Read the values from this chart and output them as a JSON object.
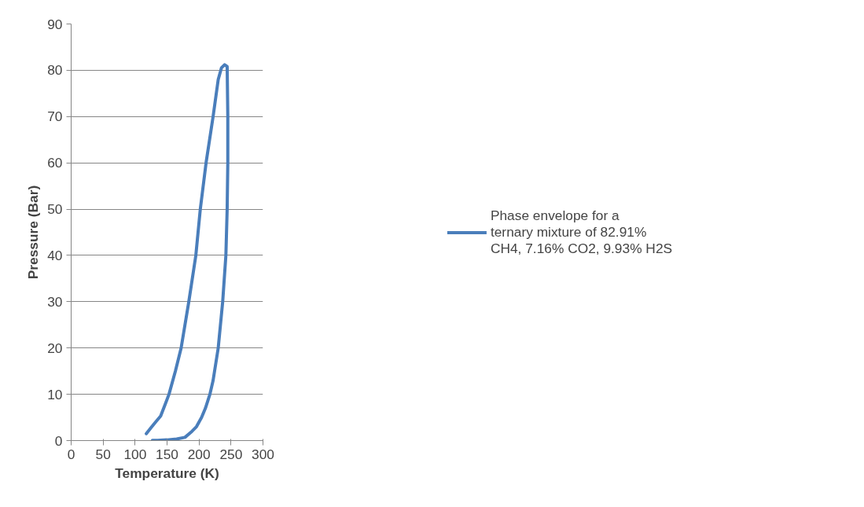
{
  "chart_data": {
    "type": "line",
    "xlabel": "Temperature (K)",
    "ylabel": "Pressure (Bar)",
    "xlim": [
      0,
      300
    ],
    "xticks": [
      0,
      50,
      100,
      150,
      200,
      250,
      300
    ],
    "ylim": [
      0,
      90
    ],
    "yticks": [
      0,
      10,
      20,
      30,
      40,
      50,
      60,
      70,
      80,
      90
    ],
    "grid": "y",
    "legend": "right",
    "marker": "none",
    "line_style": "solid",
    "series": [
      {
        "name": "Phase envelope for a ternary mixture of 82.91% CH4, 7.16% CO2, 9.93% H2S",
        "color": "#4a7ebb",
        "x": [
          117.5,
          125,
          132,
          140,
          147,
          153,
          163,
          172,
          184,
          195,
          202,
          211,
          222,
          230,
          235,
          240,
          244,
          245,
          245,
          244,
          242,
          237,
          230,
          222,
          217,
          210,
          204,
          196,
          189,
          178,
          165,
          150,
          135,
          127
        ],
        "values": [
          1.5,
          2.8,
          4,
          5.3,
          7.8,
          10,
          15,
          20,
          30,
          40,
          50,
          60,
          70,
          78,
          80.5,
          81.2,
          80.8,
          70,
          60,
          50,
          40,
          30,
          20,
          13,
          10,
          7,
          5,
          3,
          2,
          0.7,
          0.35,
          0.15,
          0.05,
          0.05
        ]
      }
    ]
  }
}
